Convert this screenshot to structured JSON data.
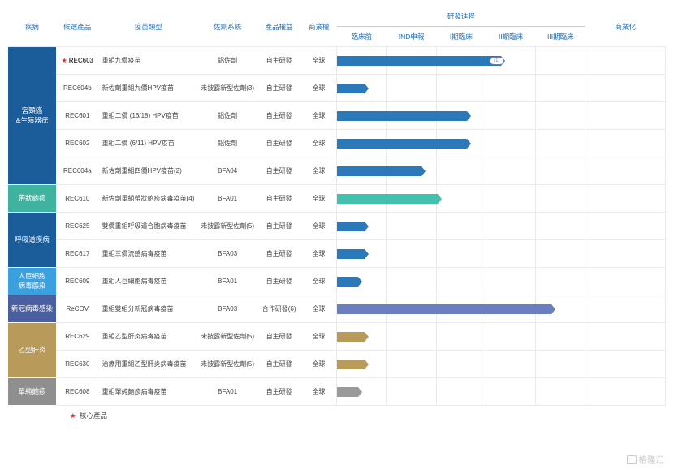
{
  "layout": {
    "stage_count": 5,
    "col_widths": {
      "disease": 54,
      "product": 48,
      "type": 112,
      "adjuvant": 66,
      "rights": 50,
      "territory": 40,
      "stage": 56,
      "commercial": 90
    }
  },
  "colors": {
    "header_text": "#1f6db5",
    "cat_cervical": "#1b5d9a",
    "cat_shingles": "#3fb3a0",
    "cat_resp": "#1b5d9a",
    "cat_cmv": "#3aa0de",
    "cat_covid": "#4a5fa0",
    "cat_hbv": "#b89a5a",
    "cat_hsv": "#8f8f8f",
    "bar_blue": "#2b79b9",
    "bar_teal": "#44c0ae",
    "bar_purple": "#6b7fc0",
    "bar_gold": "#b89a5a",
    "bar_grey": "#9a9a9a"
  },
  "headers": {
    "disease": "疾病",
    "product": "候選產品",
    "type": "疫苗類型",
    "adjuvant": "佐劑系統",
    "rights": "產品權益",
    "territory": "商業權",
    "progress_group": "研發進程",
    "stages": [
      "臨床前",
      "IND申報",
      "I期臨床",
      "II期臨床",
      "III期臨床"
    ],
    "commercial": "商業化"
  },
  "categories": [
    {
      "label": "宮頸癌\\n&生殖器疣",
      "color_key": "cat_cervical",
      "rows": [
        {
          "product": "REC603",
          "starred": true,
          "type": "重組九價疫苗",
          "adjuvant": "鋁佐劑",
          "rights": "自主研發",
          "territory": "全球",
          "bar_color": "bar_blue",
          "progress": 3.7,
          "pill": {
            "stage": 4,
            "label": "(1)"
          }
        },
        {
          "product": "REC604b",
          "type": "新佐劑重組九價HPV疫苗",
          "adjuvant": "未披露新型佐劑(3)",
          "rights": "自主研發",
          "territory": "全球",
          "bar_color": "bar_blue",
          "progress": 0.7
        },
        {
          "product": "REC601",
          "type": "重組二價 (16/18) HPV疫苗",
          "adjuvant": "鋁佐劑",
          "rights": "自主研發",
          "territory": "全球",
          "bar_color": "bar_blue",
          "progress": 2.95
        },
        {
          "product": "REC602",
          "type": "重組二價 (6/11) HPV疫苗",
          "adjuvant": "鋁佐劑",
          "rights": "自主研發",
          "territory": "全球",
          "bar_color": "bar_blue",
          "progress": 2.95
        },
        {
          "product": "REC604a",
          "type": "新佐劑重組四價HPV疫苗(2)",
          "adjuvant": "BFA04",
          "rights": "自主研發",
          "territory": "全球",
          "bar_color": "bar_blue",
          "progress": 1.95
        }
      ]
    },
    {
      "label": "帶狀皰疹",
      "color_key": "cat_shingles",
      "rows": [
        {
          "product": "REC610",
          "type": "新佐劑重組帶狀皰疹病毒疫苗(4)",
          "adjuvant": "BFA01",
          "rights": "自主研發",
          "territory": "全球",
          "bar_color": "bar_teal",
          "progress": 2.3
        }
      ]
    },
    {
      "label": "呼吸道疾病",
      "color_key": "cat_resp",
      "rows": [
        {
          "product": "REC625",
          "type": "雙價重組呼吸道合胞病毒疫苗",
          "adjuvant": "未披露新型佐劑(5)",
          "rights": "自主研發",
          "territory": "全球",
          "bar_color": "bar_blue",
          "progress": 0.7
        },
        {
          "product": "REC617",
          "type": "重組三價流感病毒疫苗",
          "adjuvant": "BFA03",
          "rights": "自主研發",
          "territory": "全球",
          "bar_color": "bar_blue",
          "progress": 0.7
        }
      ]
    },
    {
      "label": "人巨細胞\\n病毒感染",
      "color_key": "cat_cmv",
      "rows": [
        {
          "product": "REC609",
          "type": "重組人巨細胞病毒疫苗",
          "adjuvant": "BFA01",
          "rights": "自主研發",
          "territory": "全球",
          "bar_color": "bar_blue",
          "progress": 0.55
        }
      ]
    },
    {
      "label": "新冠病毒感染",
      "color_key": "cat_covid",
      "rows": [
        {
          "product": "ReCOV",
          "type": "重組雙組分新冠病毒疫苗",
          "adjuvant": "BFA03",
          "rights": "合作研發(6)",
          "territory": "全球",
          "bar_color": "bar_purple",
          "progress": 4.8
        }
      ]
    },
    {
      "label": "乙型肝炎",
      "color_key": "cat_hbv",
      "rows": [
        {
          "product": "REC629",
          "type": "重組乙型肝炎病毒疫苗",
          "adjuvant": "未披露新型佐劑(5)",
          "rights": "自主研發",
          "territory": "全球",
          "bar_color": "bar_gold",
          "progress": 0.7
        },
        {
          "product": "REC630",
          "type": "治療用重組乙型肝炎病毒疫苗",
          "adjuvant": "未披露新型佐劑(5)",
          "rights": "自主研發",
          "territory": "全球",
          "bar_color": "bar_gold",
          "progress": 0.7
        }
      ]
    },
    {
      "label": "單純皰疹",
      "color_key": "cat_hsv",
      "rows": [
        {
          "product": "REC608",
          "type": "重組單純皰疹病毒疫苗",
          "adjuvant": "BFA01",
          "rights": "自主研發",
          "territory": "全球",
          "bar_color": "bar_grey",
          "progress": 0.55
        }
      ]
    }
  ],
  "footer": {
    "star": "★",
    "text": "核心產品"
  },
  "watermark": "格隆汇"
}
